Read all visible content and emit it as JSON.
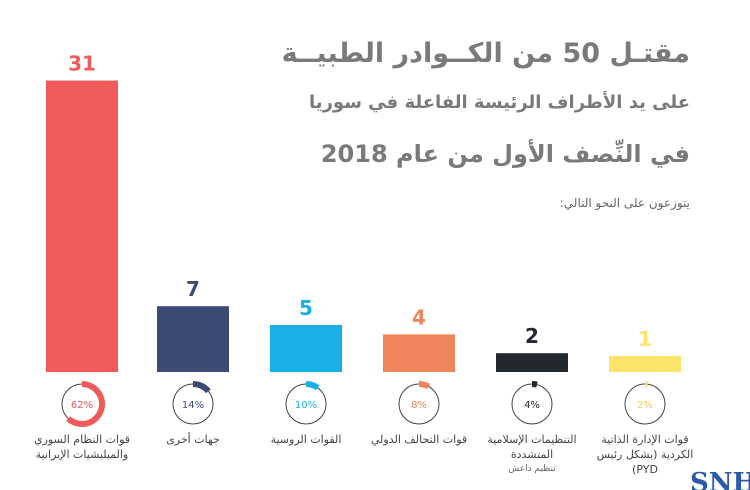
{
  "header": {
    "title": "مقتـل 50 من الكــوادر الطبيــة",
    "subtitle": "على يد الأطراف الرئيسة الفاعلة في سوريا",
    "period": "في النِّصف الأول من عام 2018",
    "intro": "يتوزعون على النحو التالي:"
  },
  "chart_data": {
    "type": "bar",
    "categories": [
      "قوات النظام السوري والميليشيات الإيرانية",
      "جهات أخرى",
      "القوات الروسية",
      "قوات التحالف الدولي",
      "التنظيمات الإسلامية المتشددة",
      "قوات الإدارة الذاتية الكردية (بشكل رئيس PYD)"
    ],
    "category_notes": [
      "",
      "",
      "",
      "",
      "تنظيم داعش",
      ""
    ],
    "values": [
      31,
      7,
      5,
      4,
      2,
      1
    ],
    "value_labels": [
      "31",
      "7",
      "5",
      "4",
      "2",
      "1"
    ],
    "percents": [
      "62%",
      "14%",
      "10%",
      "8%",
      "4%",
      "2%"
    ],
    "percent_values": [
      62,
      14,
      10,
      8,
      4,
      2
    ],
    "colors": [
      "#f15a5a",
      "#3d4a74",
      "#1aafe6",
      "#ef8359",
      "#23272e",
      "#fde46a"
    ],
    "grid": false
  },
  "logo": "SNH"
}
